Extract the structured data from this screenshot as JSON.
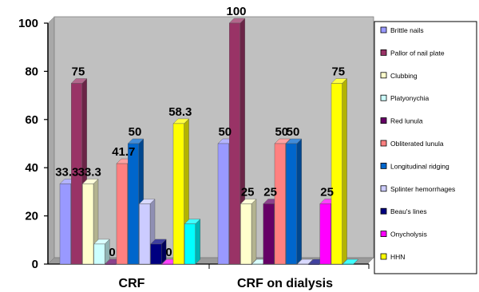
{
  "chart_data": {
    "type": "bar",
    "categories": [
      "CRF",
      "CRF on dialysis"
    ],
    "ylim": [
      0,
      100
    ],
    "yticks": [
      0,
      20,
      40,
      60,
      80,
      100
    ],
    "grid": false,
    "legend_position": "right",
    "series": [
      {
        "name": "Brittle nails",
        "values": [
          33.3,
          50
        ],
        "labels": [
          "33.3",
          "50"
        ],
        "color": "#9999ff"
      },
      {
        "name": "Pallor of nail plate",
        "values": [
          75,
          100
        ],
        "labels": [
          "75",
          "100"
        ],
        "color": "#993366"
      },
      {
        "name": "Clubbing",
        "values": [
          33.3,
          25
        ],
        "labels": [
          "33.3",
          "25"
        ],
        "color": "#ffffcc"
      },
      {
        "name": "Platyonychia",
        "values": [
          8.3,
          0
        ],
        "labels": [
          "",
          ""
        ],
        "color": "#ccffff"
      },
      {
        "name": "Red lunula",
        "values": [
          0,
          25
        ],
        "labels": [
          "0",
          "25"
        ],
        "color": "#660066"
      },
      {
        "name": "Obliterated lunula",
        "values": [
          41.7,
          50
        ],
        "labels": [
          "41.7",
          "50"
        ],
        "color": "#ff8080"
      },
      {
        "name": "Longitudinal ridging",
        "values": [
          50,
          50
        ],
        "labels": [
          "50",
          "50"
        ],
        "color": "#0066cc"
      },
      {
        "name": "Splinter hemorrhages",
        "values": [
          25,
          0
        ],
        "labels": [
          "",
          ""
        ],
        "color": "#ccccff"
      },
      {
        "name": "Beau's lines",
        "values": [
          8.3,
          0
        ],
        "labels": [
          "",
          ""
        ],
        "color": "#000080"
      },
      {
        "name": "Onycholysis",
        "values": [
          0,
          25
        ],
        "labels": [
          "0",
          "25"
        ],
        "color": "#ff00ff"
      },
      {
        "name": "HHN",
        "values": [
          58.3,
          75
        ],
        "labels": [
          "58.3",
          "75"
        ],
        "color": "#ffff00"
      },
      {
        "name": "",
        "values": [
          16.7,
          0
        ],
        "labels": [
          "",
          ""
        ],
        "color": "#00ffff"
      }
    ]
  }
}
